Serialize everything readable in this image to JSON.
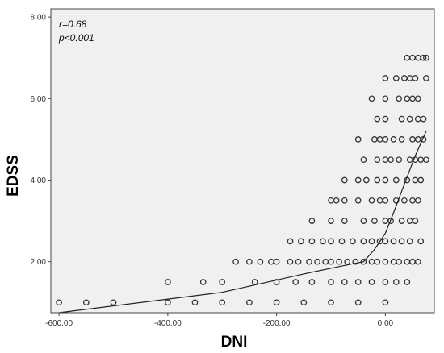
{
  "chart_data": {
    "type": "scatter",
    "xlabel": "DNI",
    "ylabel": "EDSS",
    "xlim": [
      -615,
      90
    ],
    "ylim": [
      0.75,
      8.2
    ],
    "x_ticks": [
      {
        "value": -600,
        "label": "-600.00"
      },
      {
        "value": -400,
        "label": "-400.00"
      },
      {
        "value": -200,
        "label": "-200.00"
      },
      {
        "value": 0,
        "label": "0.00"
      }
    ],
    "y_ticks": [
      {
        "value": 2,
        "label": "2.00"
      },
      {
        "value": 4,
        "label": "4.00"
      },
      {
        "value": 6,
        "label": "6.00"
      },
      {
        "value": 8,
        "label": "8.00"
      }
    ],
    "annotations": [
      "r=0.68",
      "p<0.001"
    ],
    "grid": false,
    "legend": "none",
    "colors": {
      "background": "#f0f0f0",
      "marker": "#333333",
      "line": "#222222"
    },
    "points": [
      [
        -600,
        1
      ],
      [
        -550,
        1
      ],
      [
        -500,
        1
      ],
      [
        -400,
        1
      ],
      [
        -350,
        1
      ],
      [
        -300,
        1
      ],
      [
        -250,
        1
      ],
      [
        -200,
        1
      ],
      [
        -150,
        1
      ],
      [
        -100,
        1
      ],
      [
        -50,
        1
      ],
      [
        0,
        1
      ],
      [
        -400,
        1.5
      ],
      [
        -335,
        1.5
      ],
      [
        -300,
        1.5
      ],
      [
        -240,
        1.5
      ],
      [
        -200,
        1.5
      ],
      [
        -165,
        1.5
      ],
      [
        -135,
        1.5
      ],
      [
        -100,
        1.5
      ],
      [
        -75,
        1.5
      ],
      [
        -50,
        1.5
      ],
      [
        -25,
        1.5
      ],
      [
        0,
        1.5
      ],
      [
        20,
        1.5
      ],
      [
        40,
        1.5
      ],
      [
        -275,
        2
      ],
      [
        -250,
        2
      ],
      [
        -230,
        2
      ],
      [
        -210,
        2
      ],
      [
        -200,
        2
      ],
      [
        -175,
        2
      ],
      [
        -160,
        2
      ],
      [
        -140,
        2
      ],
      [
        -125,
        2
      ],
      [
        -110,
        2
      ],
      [
        -100,
        2
      ],
      [
        -85,
        2
      ],
      [
        -70,
        2
      ],
      [
        -55,
        2
      ],
      [
        -40,
        2
      ],
      [
        -25,
        2
      ],
      [
        -15,
        2
      ],
      [
        0,
        2
      ],
      [
        15,
        2
      ],
      [
        25,
        2
      ],
      [
        40,
        2
      ],
      [
        50,
        2
      ],
      [
        60,
        2
      ],
      [
        -175,
        2.5
      ],
      [
        -155,
        2.5
      ],
      [
        -135,
        2.5
      ],
      [
        -115,
        2.5
      ],
      [
        -100,
        2.5
      ],
      [
        -80,
        2.5
      ],
      [
        -60,
        2.5
      ],
      [
        -40,
        2.5
      ],
      [
        -25,
        2.5
      ],
      [
        -10,
        2.5
      ],
      [
        0,
        2.5
      ],
      [
        15,
        2.5
      ],
      [
        30,
        2.5
      ],
      [
        45,
        2.5
      ],
      [
        65,
        2.5
      ],
      [
        -135,
        3
      ],
      [
        -100,
        3
      ],
      [
        -75,
        3
      ],
      [
        -40,
        3
      ],
      [
        -20,
        3
      ],
      [
        0,
        3
      ],
      [
        10,
        3
      ],
      [
        30,
        3
      ],
      [
        45,
        3
      ],
      [
        55,
        3
      ],
      [
        -100,
        3.5
      ],
      [
        -90,
        3.5
      ],
      [
        -75,
        3.5
      ],
      [
        -50,
        3.5
      ],
      [
        -25,
        3.5
      ],
      [
        -10,
        3.5
      ],
      [
        0,
        3.5
      ],
      [
        20,
        3.5
      ],
      [
        35,
        3.5
      ],
      [
        50,
        3.5
      ],
      [
        60,
        3.5
      ],
      [
        -75,
        4
      ],
      [
        -50,
        4
      ],
      [
        -35,
        4
      ],
      [
        -15,
        4
      ],
      [
        0,
        4
      ],
      [
        20,
        4
      ],
      [
        40,
        4
      ],
      [
        55,
        4
      ],
      [
        65,
        4
      ],
      [
        -40,
        4.5
      ],
      [
        -15,
        4.5
      ],
      [
        0,
        4.5
      ],
      [
        10,
        4.5
      ],
      [
        25,
        4.5
      ],
      [
        45,
        4.5
      ],
      [
        55,
        4.5
      ],
      [
        65,
        4.5
      ],
      [
        75,
        4.5
      ],
      [
        -50,
        5
      ],
      [
        -20,
        5
      ],
      [
        -10,
        5
      ],
      [
        0,
        5
      ],
      [
        15,
        5
      ],
      [
        30,
        5
      ],
      [
        50,
        5
      ],
      [
        60,
        5
      ],
      [
        70,
        5
      ],
      [
        -15,
        5.5
      ],
      [
        0,
        5.5
      ],
      [
        30,
        5.5
      ],
      [
        45,
        5.5
      ],
      [
        60,
        5.5
      ],
      [
        70,
        5.5
      ],
      [
        -25,
        6
      ],
      [
        0,
        6
      ],
      [
        25,
        6
      ],
      [
        40,
        6
      ],
      [
        50,
        6
      ],
      [
        60,
        6
      ],
      [
        0,
        6.5
      ],
      [
        20,
        6.5
      ],
      [
        35,
        6.5
      ],
      [
        45,
        6.5
      ],
      [
        55,
        6.5
      ],
      [
        75,
        6.5
      ],
      [
        40,
        7
      ],
      [
        50,
        7
      ],
      [
        60,
        7
      ],
      [
        70,
        7
      ],
      [
        75,
        7
      ]
    ],
    "fit_line": [
      [
        -600,
        0.75
      ],
      [
        -300,
        1.25
      ],
      [
        -150,
        1.7
      ],
      [
        -60,
        1.95
      ],
      [
        -40,
        2.0
      ],
      [
        -20,
        2.3
      ],
      [
        0,
        2.7
      ],
      [
        15,
        3.2
      ],
      [
        35,
        3.9
      ],
      [
        55,
        4.6
      ],
      [
        75,
        5.2
      ]
    ]
  }
}
